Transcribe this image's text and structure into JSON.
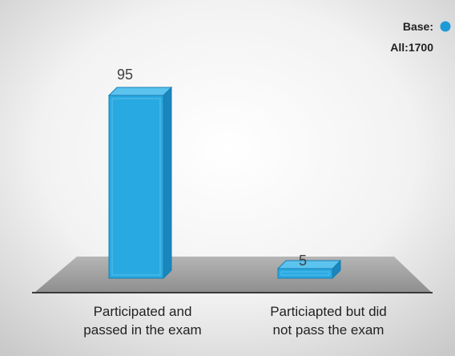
{
  "legend": {
    "line1": "Base:",
    "line2": "All:1700",
    "marker_color": "#1E9BD7"
  },
  "chart_data": {
    "type": "bar",
    "categories": [
      [
        "Participated and",
        "passed in the exam"
      ],
      [
        "Particiapted  but did",
        "not pass the exam"
      ]
    ],
    "values": [
      95,
      5
    ],
    "data_labels": [
      "95",
      "5"
    ],
    "ylim": [
      0,
      100
    ],
    "grid": false,
    "legend_position": "top-right",
    "style": "3d-column",
    "colors": {
      "bar_front": "#29A9E1",
      "bar_side": "#1A86BC",
      "bar_top": "#5CC3EE",
      "bar_edge": "#167FB4",
      "floor": "#A6A6A6",
      "floor_edge": "#3A3A3A"
    }
  }
}
